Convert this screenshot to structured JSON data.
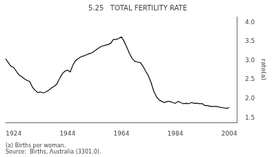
{
  "chart_data": {
    "type": "line",
    "title": "5.25   TOTAL FERTILITY RATE",
    "y_label": "rate(a)",
    "annotations": [
      "(a) Births per woman.",
      "Source:  Births, Australia (3301.0)."
    ],
    "x": [
      1921,
      1922,
      1923,
      1924,
      1925,
      1926,
      1927,
      1928,
      1929,
      1930,
      1931,
      1932,
      1933,
      1934,
      1935,
      1936,
      1937,
      1938,
      1939,
      1940,
      1941,
      1942,
      1943,
      1944,
      1945,
      1946,
      1947,
      1948,
      1949,
      1950,
      1951,
      1952,
      1953,
      1954,
      1955,
      1956,
      1957,
      1958,
      1959,
      1960,
      1961,
      1962,
      1963,
      1964,
      1965,
      1966,
      1967,
      1968,
      1969,
      1970,
      1971,
      1972,
      1973,
      1974,
      1975,
      1976,
      1977,
      1978,
      1979,
      1980,
      1981,
      1982,
      1983,
      1984,
      1985,
      1986,
      1987,
      1988,
      1989,
      1990,
      1991,
      1992,
      1993,
      1994,
      1995,
      1996,
      1997,
      1998,
      1999,
      2000,
      2001,
      2002,
      2003,
      2004
    ],
    "values": [
      3.05,
      2.95,
      2.85,
      2.82,
      2.72,
      2.62,
      2.58,
      2.52,
      2.48,
      2.45,
      2.3,
      2.22,
      2.16,
      2.18,
      2.15,
      2.18,
      2.22,
      2.28,
      2.32,
      2.38,
      2.52,
      2.65,
      2.72,
      2.75,
      2.7,
      2.88,
      3.0,
      3.05,
      3.1,
      3.12,
      3.15,
      3.18,
      3.2,
      3.25,
      3.3,
      3.35,
      3.38,
      3.4,
      3.42,
      3.45,
      3.55,
      3.55,
      3.58,
      3.62,
      3.5,
      3.35,
      3.18,
      3.05,
      2.98,
      2.96,
      2.95,
      2.85,
      2.72,
      2.6,
      2.42,
      2.2,
      2.05,
      1.97,
      1.93,
      1.9,
      1.93,
      1.93,
      1.9,
      1.88,
      1.93,
      1.9,
      1.87,
      1.88,
      1.87,
      1.9,
      1.88,
      1.88,
      1.87,
      1.87,
      1.82,
      1.82,
      1.8,
      1.8,
      1.8,
      1.79,
      1.77,
      1.76,
      1.75,
      1.77
    ],
    "color": "#000000",
    "xlim": [
      1921,
      2007
    ],
    "xticks": [
      1924,
      1944,
      1964,
      1984,
      2004
    ],
    "ylim": [
      1.38,
      4.15
    ],
    "yticks": [
      1.5,
      {
        "value": 2.0,
        "label": "2.0"
      },
      2.5,
      {
        "value": 3.0,
        "label": "3.0"
      },
      3.5,
      {
        "value": 4.0,
        "label": "4.0"
      }
    ],
    "grid": false
  }
}
